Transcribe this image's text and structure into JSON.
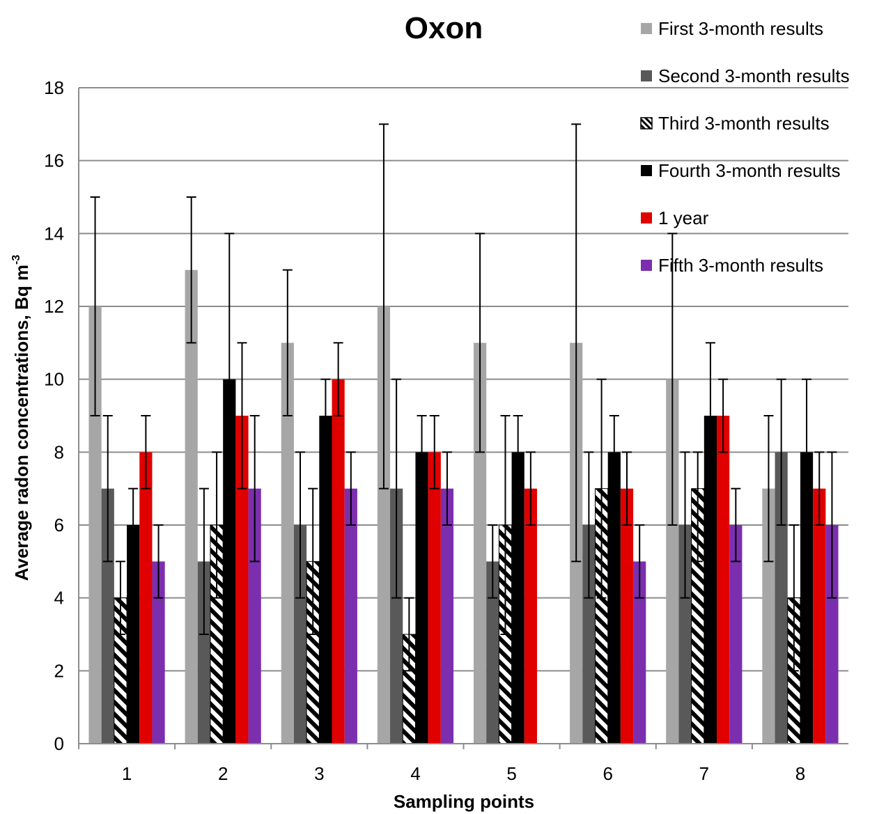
{
  "chart_data": {
    "type": "bar",
    "title": "Oxon",
    "xlabel": "Sampling points",
    "ylabel": "Average radon concentrations, Bq m",
    "ylabel_superscript": "-3",
    "categories": [
      "1",
      "2",
      "3",
      "4",
      "5",
      "6",
      "7",
      "8"
    ],
    "ylim": [
      0,
      18
    ],
    "yticks": [
      "0",
      "2",
      "4",
      "6",
      "8",
      "10",
      "12",
      "14",
      "16",
      "18"
    ],
    "grid": true,
    "legend_position": "top-right",
    "series": [
      {
        "name": "First 3-month results",
        "color": "#a6a6a6",
        "pattern": "solid",
        "values": [
          12,
          13,
          11,
          12,
          11,
          11,
          10,
          7
        ],
        "error_low": [
          9,
          11,
          9,
          7,
          8,
          5,
          6,
          5
        ],
        "error_high": [
          15,
          15,
          13,
          17,
          14,
          17,
          14,
          9
        ]
      },
      {
        "name": "Second 3-month results",
        "color": "#595959",
        "pattern": "solid",
        "values": [
          7,
          5,
          6,
          7,
          5,
          6,
          6,
          8
        ],
        "error_low": [
          5,
          3,
          4,
          4,
          4,
          4,
          4,
          6
        ],
        "error_high": [
          9,
          7,
          8,
          10,
          6,
          8,
          8,
          10
        ]
      },
      {
        "name": "Third 3-month results",
        "color": "#000000",
        "pattern": "hatch",
        "values": [
          4,
          6,
          5,
          3,
          6,
          7,
          7,
          4
        ],
        "error_low": [
          3,
          4,
          3,
          2,
          3,
          4,
          5,
          2
        ],
        "error_high": [
          5,
          8,
          7,
          4,
          9,
          10,
          8,
          6
        ]
      },
      {
        "name": "Fourth 3-month results",
        "color": "#000000",
        "pattern": "solid",
        "values": [
          6,
          10,
          9,
          8,
          8,
          8,
          9,
          8
        ],
        "error_low": [
          5,
          7,
          8,
          7,
          7,
          7,
          8,
          6
        ],
        "error_high": [
          7,
          14,
          10,
          9,
          9,
          9,
          11,
          10
        ]
      },
      {
        "name": "1 year",
        "color": "#e00000",
        "pattern": "solid",
        "values": [
          8,
          9,
          10,
          8,
          7,
          7,
          9,
          7
        ],
        "error_low": [
          7,
          7,
          9,
          7,
          6,
          6,
          8,
          6
        ],
        "error_high": [
          9,
          11,
          11,
          9,
          8,
          8,
          10,
          8
        ]
      },
      {
        "name": "Fifth 3-month results",
        "color": "#7b2fae",
        "pattern": "solid",
        "values": [
          5,
          7,
          7,
          7,
          null,
          5,
          6,
          6
        ],
        "error_low": [
          4,
          5,
          6,
          6,
          null,
          4,
          5,
          4
        ],
        "error_high": [
          6,
          9,
          8,
          8,
          null,
          6,
          7,
          8
        ]
      }
    ]
  }
}
